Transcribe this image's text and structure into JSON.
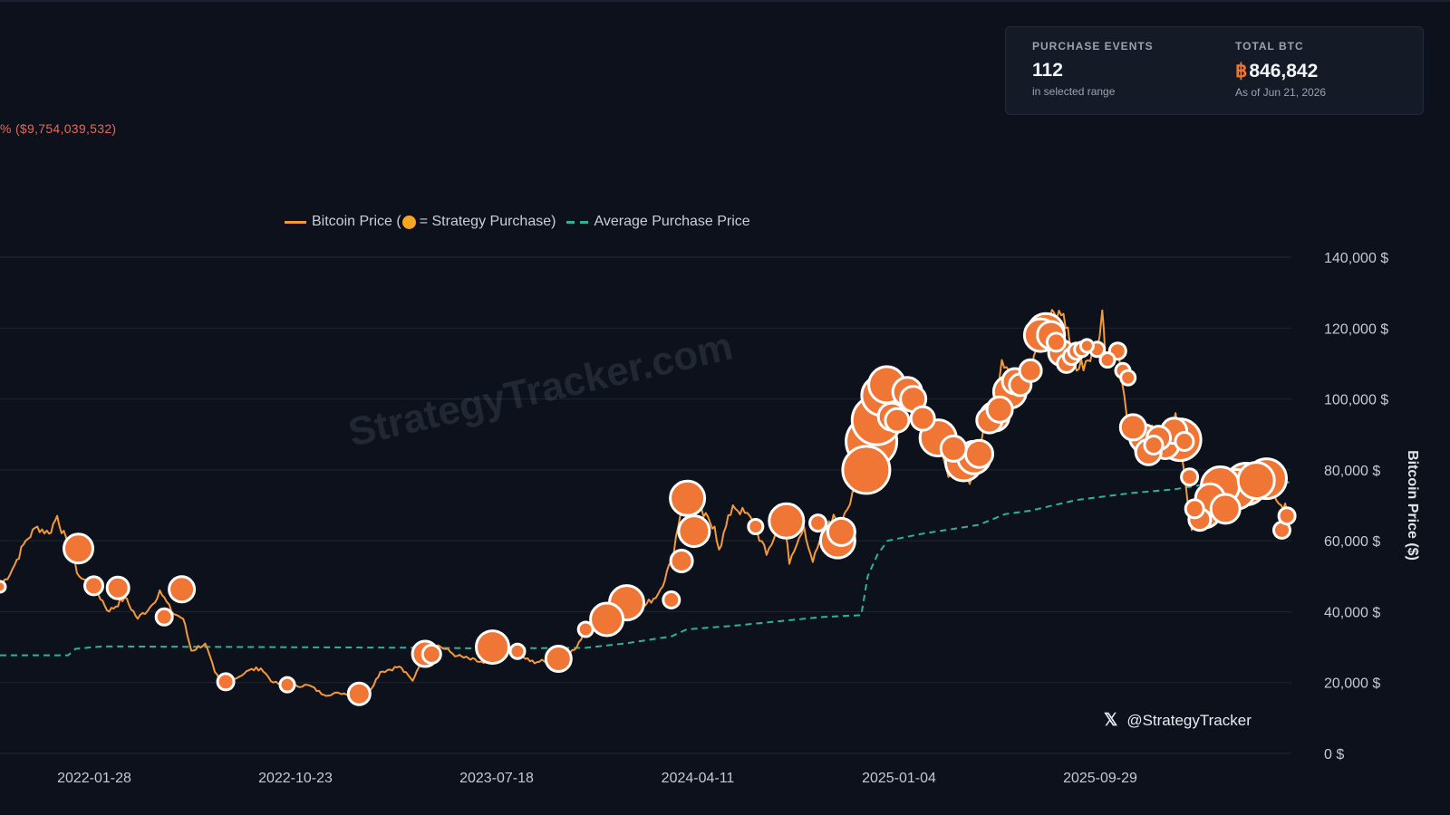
{
  "header": {
    "pnl_text": "% ($9,754,039,532)"
  },
  "stats": {
    "purchase_events_label": "PURCHASE EVENTS",
    "purchase_events_value": "112",
    "purchase_events_sub": "in selected range",
    "total_btc_label": "TOTAL BTC",
    "total_btc_symbol": "฿",
    "total_btc_value": "846,842",
    "total_btc_sub": "As of Jun 21, 2026"
  },
  "legend": {
    "price_label_prefix": "Bitcoin Price (",
    "price_label_suffix": " = Strategy Purchase)",
    "avg_label": "Average Purchase Price"
  },
  "watermark": "StrategyTracker.com",
  "social": {
    "icon": "x-logo-icon",
    "x_glyph": "𝕏",
    "handle": "@StrategyTracker"
  },
  "colors": {
    "background": "#0d111b",
    "price_line": "#f29a3a",
    "purchase_bubble": "#f07636",
    "avg_line": "#2bb592",
    "negative": "#e06a5d"
  },
  "chart_data": {
    "type": "line",
    "title": "",
    "ylabel": "Bitcoin Price ($)",
    "ylim": [
      0,
      140000
    ],
    "yticks": [
      0,
      20000,
      40000,
      60000,
      80000,
      100000,
      120000,
      140000
    ],
    "ytick_labels": [
      "0 $",
      "20,000 $",
      "40,000 $",
      "60,000 $",
      "80,000 $",
      "100,000 $",
      "120,000 $",
      "140,000 $"
    ],
    "xlim": [
      "2021-08-24",
      "2026-06-21"
    ],
    "xtick_labels": [
      "2022-01-28",
      "2022-10-23",
      "2023-07-18",
      "2024-04-11",
      "2025-01-04",
      "2025-09-29"
    ],
    "legend_position": "top",
    "grid": "horizontal",
    "series": [
      {
        "name": "Bitcoin Price",
        "points": [
          [
            "2021-08-24",
            47000
          ],
          [
            "2021-09-10",
            52000
          ],
          [
            "2021-09-28",
            60000
          ],
          [
            "2021-10-14",
            64000
          ],
          [
            "2021-10-30",
            62000
          ],
          [
            "2021-11-10",
            67000
          ],
          [
            "2021-11-25",
            58000
          ],
          [
            "2021-12-10",
            50000
          ],
          [
            "2021-12-30",
            47000
          ],
          [
            "2022-01-20",
            40000
          ],
          [
            "2022-02-10",
            44000
          ],
          [
            "2022-02-28",
            38000
          ],
          [
            "2022-03-20",
            42000
          ],
          [
            "2022-03-30",
            46000
          ],
          [
            "2022-04-15",
            40000
          ],
          [
            "2022-05-01",
            38000
          ],
          [
            "2022-05-12",
            29000
          ],
          [
            "2022-05-31",
            31000
          ],
          [
            "2022-06-13",
            23000
          ],
          [
            "2022-06-20",
            20500
          ],
          [
            "2022-07-10",
            21000
          ],
          [
            "2022-07-30",
            23500
          ],
          [
            "2022-08-15",
            24000
          ],
          [
            "2022-09-01",
            20000
          ],
          [
            "2022-09-21",
            19000
          ],
          [
            "2022-10-20",
            19200
          ],
          [
            "2022-11-09",
            16500
          ],
          [
            "2022-11-30",
            17000
          ],
          [
            "2022-12-20",
            16800
          ],
          [
            "2023-01-10",
            17500
          ],
          [
            "2023-01-25",
            23000
          ],
          [
            "2023-02-20",
            24500
          ],
          [
            "2023-03-10",
            20500
          ],
          [
            "2023-03-24",
            27500
          ],
          [
            "2023-04-14",
            30500
          ],
          [
            "2023-05-10",
            27500
          ],
          [
            "2023-06-15",
            25500
          ],
          [
            "2023-07-01",
            30500
          ],
          [
            "2023-07-18",
            29800
          ],
          [
            "2023-08-17",
            26000
          ],
          [
            "2023-09-12",
            25800
          ],
          [
            "2023-10-20",
            30000
          ],
          [
            "2023-11-01",
            35000
          ],
          [
            "2023-12-01",
            38500
          ],
          [
            "2023-12-08",
            43500
          ],
          [
            "2023-12-31",
            42000
          ],
          [
            "2024-01-20",
            41500
          ],
          [
            "2024-02-08",
            45000
          ],
          [
            "2024-02-26",
            54000
          ],
          [
            "2024-03-13",
            72000
          ],
          [
            "2024-04-01",
            69000
          ],
          [
            "2024-04-25",
            64000
          ],
          [
            "2024-05-01",
            57500
          ],
          [
            "2024-05-20",
            70000
          ],
          [
            "2024-06-15",
            66000
          ],
          [
            "2024-07-05",
            56000
          ],
          [
            "2024-07-28",
            67500
          ],
          [
            "2024-08-05",
            53500
          ],
          [
            "2024-08-25",
            64000
          ],
          [
            "2024-09-06",
            54000
          ],
          [
            "2024-09-28",
            65500
          ],
          [
            "2024-10-20",
            68000
          ],
          [
            "2024-11-06",
            75000
          ],
          [
            "2024-11-22",
            98000
          ],
          [
            "2024-12-05",
            101000
          ],
          [
            "2024-12-17",
            107000
          ],
          [
            "2024-12-30",
            93000
          ],
          [
            "2025-01-20",
            106000
          ],
          [
            "2025-02-03",
            98000
          ],
          [
            "2025-02-27",
            84000
          ],
          [
            "2025-03-10",
            78000
          ],
          [
            "2025-03-31",
            82000
          ],
          [
            "2025-04-08",
            76000
          ],
          [
            "2025-04-21",
            87500
          ],
          [
            "2025-05-05",
            95000
          ],
          [
            "2025-05-22",
            111000
          ],
          [
            "2025-06-22",
            101000
          ],
          [
            "2025-07-14",
            122000
          ],
          [
            "2025-08-14",
            124000
          ],
          [
            "2025-09-01",
            108000
          ],
          [
            "2025-09-29",
            114000
          ],
          [
            "2025-10-06",
            125000
          ],
          [
            "2025-10-10",
            112000
          ],
          [
            "2025-10-27",
            115000
          ],
          [
            "2025-11-05",
            101000
          ],
          [
            "2025-11-21",
            84000
          ],
          [
            "2025-12-10",
            92000
          ],
          [
            "2025-12-31",
            87500
          ],
          [
            "2026-01-14",
            96000
          ],
          [
            "2026-02-05",
            63000
          ],
          [
            "2026-02-20",
            67000
          ],
          [
            "2026-03-10",
            70000
          ],
          [
            "2026-04-05",
            72000
          ],
          [
            "2026-05-01",
            78000
          ],
          [
            "2026-05-25",
            76000
          ],
          [
            "2026-06-07",
            70000
          ],
          [
            "2026-06-21",
            67500
          ]
        ]
      },
      {
        "name": "Average Purchase Price",
        "points": [
          [
            "2021-08-24",
            27700
          ],
          [
            "2021-11-25",
            27700
          ],
          [
            "2021-12-05",
            29500
          ],
          [
            "2022-01-10",
            30200
          ],
          [
            "2023-04-05",
            29800
          ],
          [
            "2023-06-20",
            29600
          ],
          [
            "2023-11-01",
            29800
          ],
          [
            "2023-12-27",
            31100
          ],
          [
            "2024-02-26",
            33000
          ],
          [
            "2024-03-18",
            35000
          ],
          [
            "2024-05-20",
            36000
          ],
          [
            "2024-08-01",
            37500
          ],
          [
            "2024-09-20",
            38500
          ],
          [
            "2024-11-11",
            39000
          ],
          [
            "2024-11-20",
            50000
          ],
          [
            "2024-12-03",
            56000
          ],
          [
            "2024-12-17",
            60000
          ],
          [
            "2025-02-03",
            62000
          ],
          [
            "2025-04-21",
            64500
          ],
          [
            "2025-05-26",
            67500
          ],
          [
            "2025-06-30",
            68500
          ],
          [
            "2025-09-01",
            71500
          ],
          [
            "2025-11-17",
            73500
          ],
          [
            "2026-01-12",
            74500
          ],
          [
            "2026-02-20",
            75800
          ],
          [
            "2026-06-21",
            76500
          ]
        ]
      },
      {
        "name": "Strategy Purchase",
        "points": [
          [
            "2021-08-24",
            47000,
            6
          ],
          [
            "2021-12-09",
            57800,
            16
          ],
          [
            "2021-12-30",
            47300,
            10
          ],
          [
            "2022-02-01",
            46700,
            12
          ],
          [
            "2022-04-05",
            38500,
            9
          ],
          [
            "2022-04-29",
            46300,
            14
          ],
          [
            "2022-06-28",
            20200,
            9
          ],
          [
            "2022-09-20",
            19400,
            8
          ],
          [
            "2022-12-27",
            16800,
            12
          ],
          [
            "2023-03-27",
            28100,
            14
          ],
          [
            "2023-04-05",
            28000,
            10
          ],
          [
            "2023-06-27",
            30000,
            18
          ],
          [
            "2023-07-31",
            28800,
            8
          ],
          [
            "2023-09-25",
            26700,
            14
          ],
          [
            "2023-11-01",
            35000,
            8
          ],
          [
            "2023-11-30",
            37800,
            18
          ],
          [
            "2023-12-27",
            42500,
            19
          ],
          [
            "2024-02-26",
            43300,
            9
          ],
          [
            "2024-03-11",
            54300,
            12
          ],
          [
            "2024-03-19",
            72000,
            19
          ],
          [
            "2024-03-28",
            62700,
            17
          ],
          [
            "2024-06-20",
            64000,
            8
          ],
          [
            "2024-08-01",
            65600,
            19
          ],
          [
            "2024-09-13",
            65000,
            9
          ],
          [
            "2024-10-10",
            60000,
            19
          ],
          [
            "2024-10-15",
            62500,
            15
          ],
          [
            "2024-11-18",
            80000,
            26
          ],
          [
            "2024-11-25",
            88000,
            28
          ],
          [
            "2024-12-02",
            94000,
            27
          ],
          [
            "2024-12-09",
            101000,
            22
          ],
          [
            "2024-12-16",
            104000,
            20
          ],
          [
            "2024-12-23",
            95000,
            15
          ],
          [
            "2024-12-30",
            94000,
            13
          ],
          [
            "2025-01-13",
            102000,
            16
          ],
          [
            "2025-01-21",
            100000,
            14
          ],
          [
            "2025-02-03",
            94500,
            13
          ],
          [
            "2025-02-24",
            89000,
            20
          ],
          [
            "2025-03-17",
            86000,
            14
          ],
          [
            "2025-03-31",
            82000,
            20
          ],
          [
            "2025-04-14",
            83500,
            18
          ],
          [
            "2025-04-21",
            84500,
            15
          ],
          [
            "2025-05-05",
            94000,
            14
          ],
          [
            "2025-05-12",
            95000,
            16
          ],
          [
            "2025-05-19",
            97000,
            14
          ],
          [
            "2025-06-02",
            102000,
            18
          ],
          [
            "2025-06-09",
            105000,
            14
          ],
          [
            "2025-06-16",
            104000,
            12
          ],
          [
            "2025-06-30",
            108000,
            12
          ],
          [
            "2025-07-14",
            118000,
            18
          ],
          [
            "2025-07-21",
            119000,
            20
          ],
          [
            "2025-07-28",
            118000,
            15
          ],
          [
            "2025-08-04",
            116000,
            10
          ],
          [
            "2025-08-11",
            113000,
            14
          ],
          [
            "2025-08-18",
            110000,
            10
          ],
          [
            "2025-08-25",
            112000,
            9
          ],
          [
            "2025-09-01",
            113500,
            9
          ],
          [
            "2025-09-08",
            114000,
            8
          ],
          [
            "2025-09-15",
            115000,
            7
          ],
          [
            "2025-09-29",
            114000,
            8
          ],
          [
            "2025-10-13",
            111000,
            8
          ],
          [
            "2025-10-27",
            113500,
            9
          ],
          [
            "2025-11-03",
            108000,
            8
          ],
          [
            "2025-11-10",
            106000,
            8
          ],
          [
            "2025-11-17",
            92000,
            14
          ],
          [
            "2025-12-01",
            89000,
            15
          ],
          [
            "2025-12-08",
            85000,
            14
          ],
          [
            "2025-12-15",
            87000,
            10
          ],
          [
            "2025-12-22",
            89000,
            13
          ],
          [
            "2025-12-31",
            87000,
            15
          ],
          [
            "2026-01-12",
            91000,
            14
          ],
          [
            "2026-01-20",
            88500,
            23
          ],
          [
            "2026-01-26",
            88000,
            10
          ],
          [
            "2026-02-02",
            78000,
            9
          ],
          [
            "2026-02-09",
            69000,
            10
          ],
          [
            "2026-02-16",
            66000,
            12
          ],
          [
            "2026-02-23",
            68000,
            17
          ],
          [
            "2026-03-02",
            72000,
            16
          ],
          [
            "2026-03-16",
            75500,
            21
          ],
          [
            "2026-03-23",
            69000,
            16
          ],
          [
            "2026-04-06",
            74500,
            22
          ],
          [
            "2026-04-20",
            76000,
            23
          ],
          [
            "2026-05-04",
            77000,
            20
          ],
          [
            "2026-05-18",
            77500,
            22
          ],
          [
            "2026-06-08",
            63000,
            9
          ],
          [
            "2026-06-15",
            67000,
            9
          ]
        ]
      }
    ]
  }
}
